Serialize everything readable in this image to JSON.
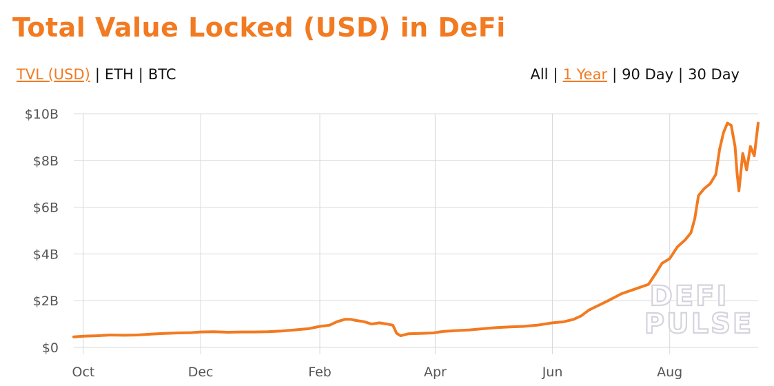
{
  "title": "Total Value Locked (USD) in DeFi",
  "metric_toggle": {
    "options": [
      "TVL (USD)",
      "ETH",
      "BTC"
    ],
    "active": "TVL (USD)"
  },
  "range_toggle": {
    "options": [
      "All",
      "1 Year",
      "90 Day",
      "30 Day"
    ],
    "active": "1 Year"
  },
  "watermark": [
    "DEFI",
    "PULSE"
  ],
  "colors": {
    "accent": "#f27a21",
    "line": "#f27a21",
    "grid": "#d9d9d9",
    "text": "#111111",
    "tick_text": "#555555"
  },
  "chart_data": {
    "type": "line",
    "title": "Total Value Locked (USD) in DeFi",
    "xlabel": "",
    "ylabel": "",
    "x_start": "2019-09-26",
    "x_end": "2020-09-16",
    "ylim": [
      0,
      10
    ],
    "y_unit": "billion USD",
    "yticks": [
      0,
      2,
      4,
      6,
      8,
      10
    ],
    "ytick_labels": [
      "$0",
      "$2B",
      "$4B",
      "$6B",
      "$8B",
      "$10B"
    ],
    "xticks": [
      "2019-10-01",
      "2019-12-01",
      "2020-02-01",
      "2020-04-01",
      "2020-06-01",
      "2020-08-01"
    ],
    "xtick_labels": [
      "Oct",
      "Dec",
      "Feb",
      "Apr",
      "Jun",
      "Aug"
    ],
    "grid": true,
    "legend": "none",
    "series": [
      {
        "points": [
          [
            "2019-09-26",
            0.45
          ],
          [
            "2019-10-01",
            0.48
          ],
          [
            "2019-10-08",
            0.5
          ],
          [
            "2019-10-15",
            0.53
          ],
          [
            "2019-10-22",
            0.52
          ],
          [
            "2019-10-29",
            0.53
          ],
          [
            "2019-11-05",
            0.57
          ],
          [
            "2019-11-12",
            0.6
          ],
          [
            "2019-11-19",
            0.62
          ],
          [
            "2019-11-26",
            0.63
          ],
          [
            "2019-12-01",
            0.66
          ],
          [
            "2019-12-08",
            0.67
          ],
          [
            "2019-12-15",
            0.65
          ],
          [
            "2019-12-22",
            0.66
          ],
          [
            "2019-12-29",
            0.66
          ],
          [
            "2020-01-05",
            0.67
          ],
          [
            "2020-01-12",
            0.7
          ],
          [
            "2020-01-19",
            0.75
          ],
          [
            "2020-01-26",
            0.8
          ],
          [
            "2020-02-01",
            0.9
          ],
          [
            "2020-02-06",
            0.95
          ],
          [
            "2020-02-10",
            1.1
          ],
          [
            "2020-02-14",
            1.2
          ],
          [
            "2020-02-17",
            1.2
          ],
          [
            "2020-02-20",
            1.15
          ],
          [
            "2020-02-24",
            1.1
          ],
          [
            "2020-02-28",
            1.0
          ],
          [
            "2020-03-03",
            1.05
          ],
          [
            "2020-03-07",
            1.0
          ],
          [
            "2020-03-10",
            0.95
          ],
          [
            "2020-03-12",
            0.6
          ],
          [
            "2020-03-14",
            0.5
          ],
          [
            "2020-03-18",
            0.58
          ],
          [
            "2020-03-24",
            0.6
          ],
          [
            "2020-03-31",
            0.62
          ],
          [
            "2020-04-05",
            0.68
          ],
          [
            "2020-04-12",
            0.72
          ],
          [
            "2020-04-19",
            0.75
          ],
          [
            "2020-04-26",
            0.8
          ],
          [
            "2020-05-03",
            0.85
          ],
          [
            "2020-05-10",
            0.88
          ],
          [
            "2020-05-17",
            0.9
          ],
          [
            "2020-05-24",
            0.95
          ],
          [
            "2020-06-01",
            1.05
          ],
          [
            "2020-06-07",
            1.1
          ],
          [
            "2020-06-12",
            1.2
          ],
          [
            "2020-06-16",
            1.35
          ],
          [
            "2020-06-20",
            1.6
          ],
          [
            "2020-06-25",
            1.8
          ],
          [
            "2020-06-30",
            2.0
          ],
          [
            "2020-07-07",
            2.3
          ],
          [
            "2020-07-14",
            2.5
          ],
          [
            "2020-07-21",
            2.7
          ],
          [
            "2020-07-25",
            3.2
          ],
          [
            "2020-07-28",
            3.6
          ],
          [
            "2020-08-01",
            3.8
          ],
          [
            "2020-08-05",
            4.3
          ],
          [
            "2020-08-09",
            4.6
          ],
          [
            "2020-08-12",
            4.9
          ],
          [
            "2020-08-14",
            5.5
          ],
          [
            "2020-08-16",
            6.5
          ],
          [
            "2020-08-19",
            6.8
          ],
          [
            "2020-08-22",
            7.0
          ],
          [
            "2020-08-25",
            7.4
          ],
          [
            "2020-08-27",
            8.5
          ],
          [
            "2020-08-29",
            9.2
          ],
          [
            "2020-08-31",
            9.6
          ],
          [
            "2020-09-02",
            9.5
          ],
          [
            "2020-09-04",
            8.6
          ],
          [
            "2020-09-05",
            7.5
          ],
          [
            "2020-09-06",
            6.7
          ],
          [
            "2020-09-08",
            8.3
          ],
          [
            "2020-09-10",
            7.6
          ],
          [
            "2020-09-12",
            8.6
          ],
          [
            "2020-09-14",
            8.2
          ],
          [
            "2020-09-16",
            9.6
          ]
        ]
      }
    ]
  }
}
